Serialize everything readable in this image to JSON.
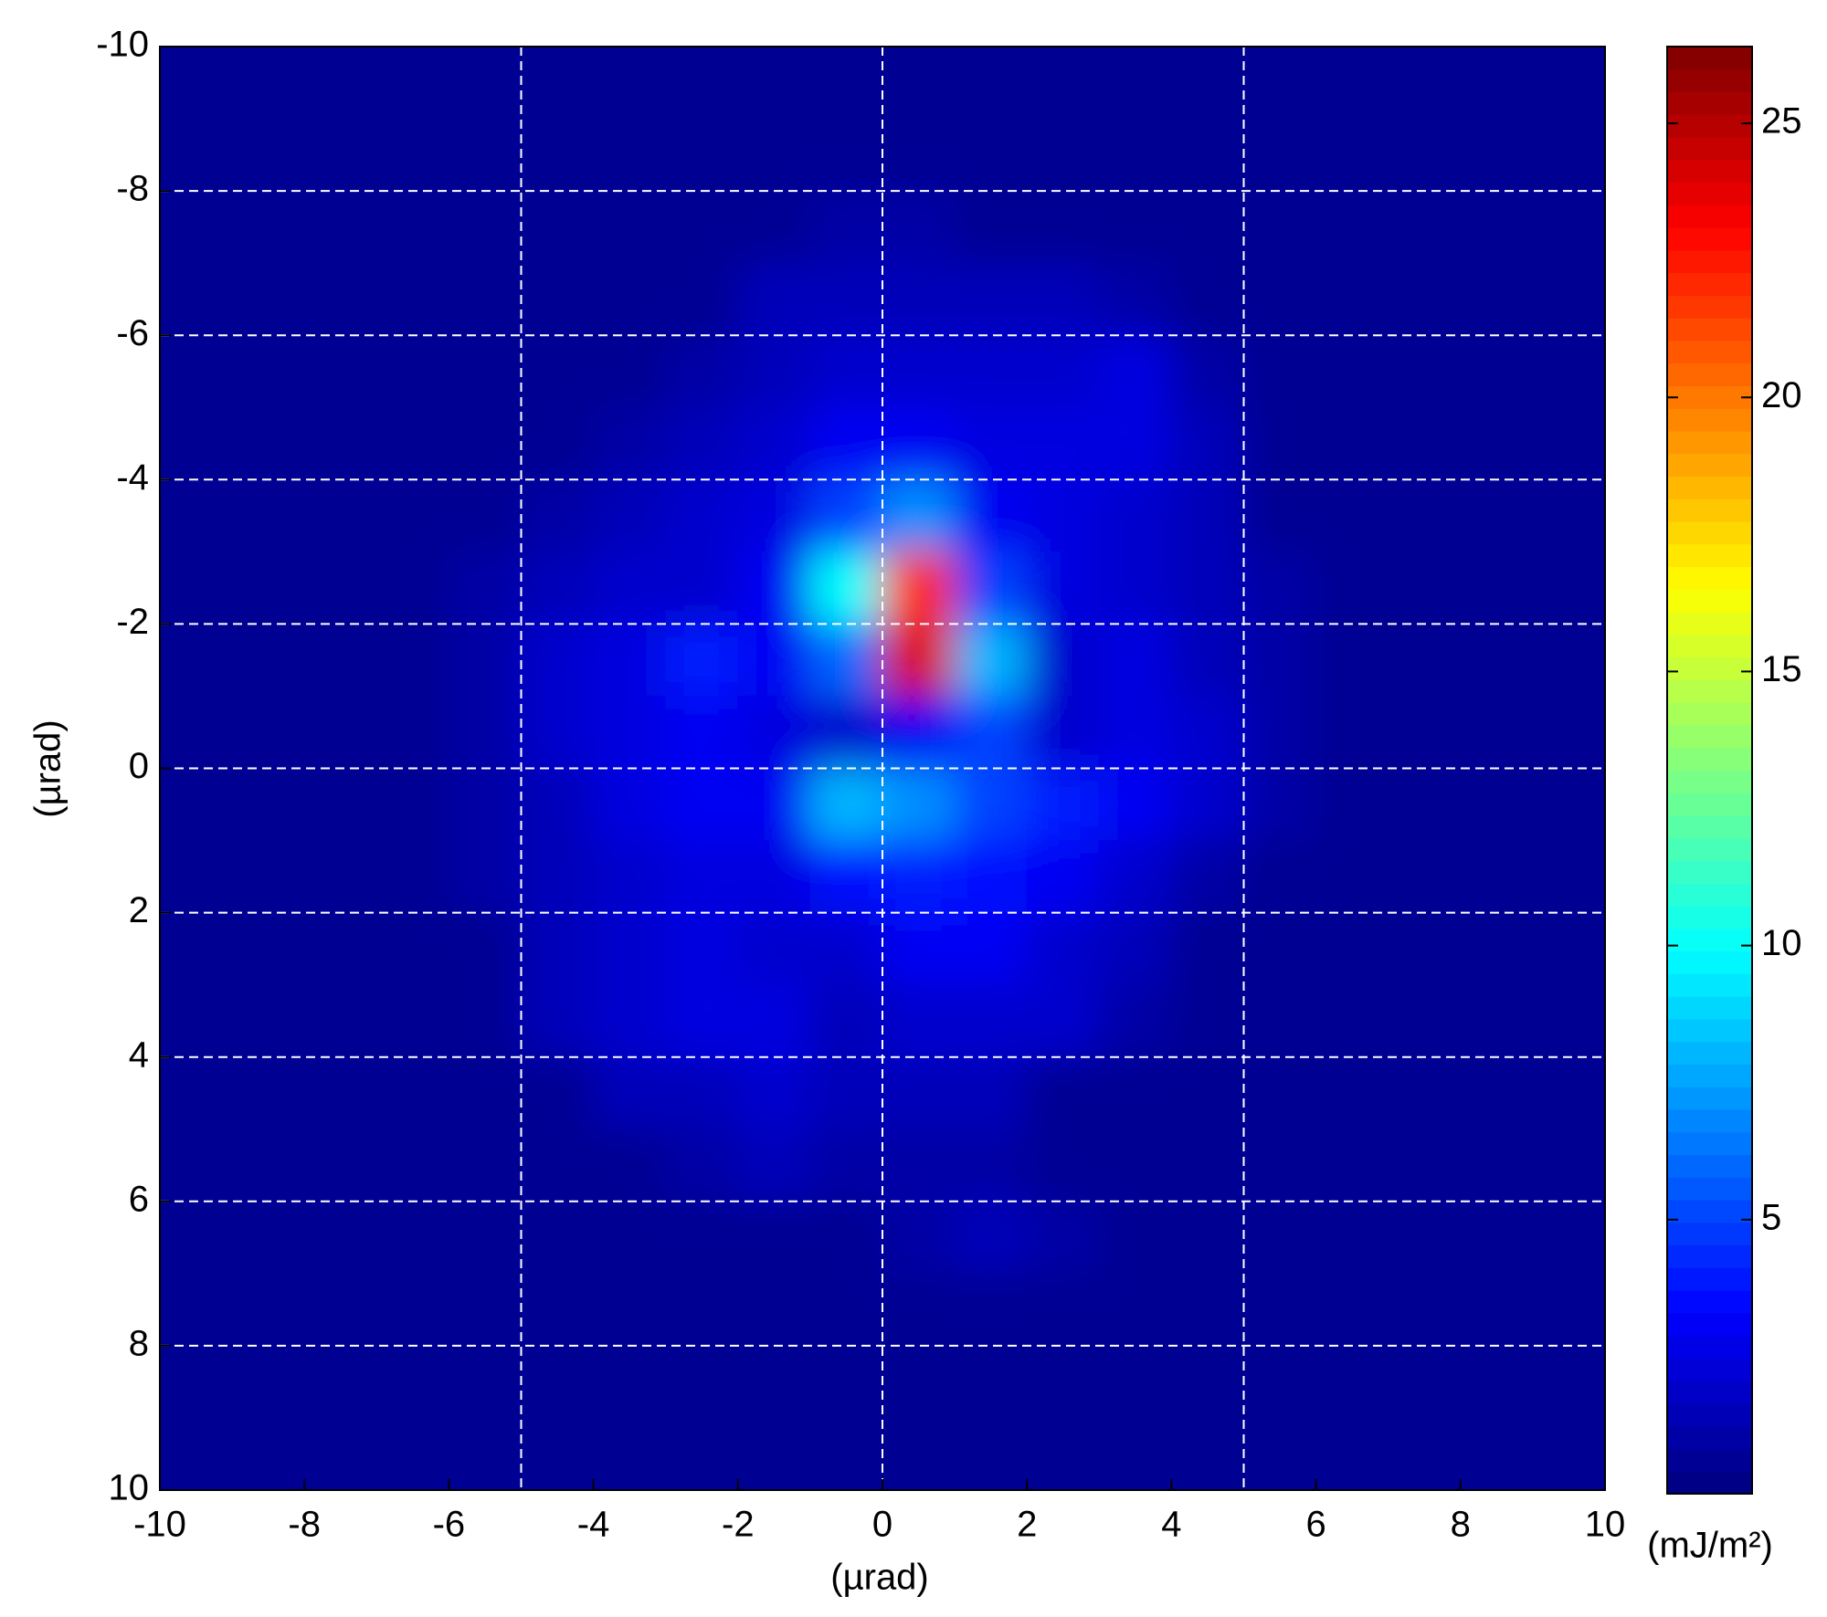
{
  "chart_data": {
    "type": "heatmap",
    "colormap": "jet",
    "x_label": "(µrad)",
    "y_label": "(µrad)",
    "colorbar_label": "(mJ/m²)",
    "xlim": [
      -10,
      10
    ],
    "ylim": [
      -10,
      10
    ],
    "y_reversed": true,
    "xticks": [
      -10,
      -8,
      -6,
      -4,
      -2,
      0,
      2,
      4,
      6,
      8,
      10
    ],
    "yticks": [
      -10,
      -8,
      -6,
      -4,
      -2,
      0,
      2,
      4,
      6,
      8,
      10
    ],
    "xgrid": [
      -5,
      0,
      5
    ],
    "ygrid": [
      -8,
      -6,
      -4,
      -2,
      0,
      2,
      4,
      6,
      8
    ],
    "zlim": [
      0,
      26.4
    ],
    "zticks": [
      5,
      10,
      15,
      20,
      25
    ],
    "x": [
      -9.5,
      -8.5,
      -7.5,
      -6.5,
      -5.5,
      -4.5,
      -3.5,
      -2.5,
      -1.5,
      -0.5,
      0.5,
      1.5,
      2.5,
      3.5,
      4.5,
      5.5,
      6.5,
      7.5,
      8.5,
      9.5
    ],
    "y": [
      -9.5,
      -8.5,
      -7.5,
      -6.5,
      -5.5,
      -4.5,
      -3.5,
      -2.5,
      -1.5,
      -0.5,
      0.5,
      1.5,
      2.5,
      3.5,
      4.5,
      5.5,
      6.5,
      7.5,
      8.5,
      9.5
    ],
    "z": [
      [
        0.5,
        0.5,
        0.5,
        0.5,
        0.5,
        0.5,
        0.5,
        0.5,
        0.5,
        0.5,
        0.5,
        0.5,
        0.5,
        0.5,
        0.5,
        0.5,
        0.5,
        0.5,
        0.5,
        0.5
      ],
      [
        0.5,
        0.5,
        0.5,
        0.5,
        0.5,
        0.5,
        0.5,
        0.5,
        0.5,
        0.5,
        0.5,
        0.5,
        0.5,
        0.5,
        0.5,
        0.5,
        0.5,
        0.5,
        0.5,
        0.5
      ],
      [
        0.5,
        0.5,
        0.5,
        0.5,
        0.5,
        0.5,
        0.5,
        0.5,
        0.5,
        1,
        1,
        0.5,
        0.5,
        0.5,
        0.5,
        0.5,
        0.5,
        0.5,
        0.5,
        0.5
      ],
      [
        0.5,
        0.5,
        0.5,
        0.5,
        0.5,
        0.5,
        0.5,
        0.5,
        1.5,
        1.5,
        1.5,
        1.5,
        1.5,
        1,
        0.5,
        0.5,
        0.5,
        0.5,
        0.5,
        0.5
      ],
      [
        0.5,
        0.5,
        0.5,
        0.5,
        0.5,
        0.5,
        0.5,
        1,
        1.5,
        2,
        2,
        2,
        2,
        2.5,
        1,
        0.5,
        0.5,
        0.5,
        0.5,
        0.5
      ],
      [
        0.5,
        0.5,
        0.5,
        0.5,
        0.5,
        0.5,
        1,
        1.5,
        2,
        3,
        3,
        2.5,
        2.5,
        2.5,
        1.5,
        0.5,
        0.5,
        0.5,
        0.5,
        0.5
      ],
      [
        0.5,
        0.5,
        0.5,
        0.5,
        0.5,
        1,
        1.5,
        2,
        2.5,
        5,
        7,
        3,
        2.5,
        2,
        1.5,
        0.5,
        0.5,
        0.5,
        0.5,
        0.5
      ],
      [
        0.5,
        0.5,
        0.5,
        0.5,
        1,
        1.5,
        2,
        2,
        3,
        10,
        22,
        5,
        2.5,
        2,
        1.5,
        1,
        0.5,
        0.5,
        0.5,
        0.5
      ],
      [
        0.5,
        0.5,
        0.5,
        0.5,
        1,
        2,
        2.5,
        4,
        3,
        6,
        24,
        8,
        2,
        2.5,
        1.5,
        1,
        0.5,
        0.5,
        0.5,
        0.5
      ],
      [
        0.5,
        0.5,
        0.5,
        0.5,
        1,
        2,
        2.5,
        3,
        2.5,
        2,
        3,
        5,
        2,
        2.5,
        2,
        1,
        0.5,
        0.5,
        0.5,
        0.5
      ],
      [
        0.5,
        0.5,
        0.5,
        0.5,
        1,
        1.5,
        2.5,
        3,
        3,
        8,
        7,
        5,
        4,
        3,
        2,
        1,
        0.5,
        0.5,
        0.5,
        0.5
      ],
      [
        0.5,
        0.5,
        0.5,
        0.5,
        1,
        1.5,
        2,
        2.5,
        2.5,
        3.5,
        4,
        3.5,
        3,
        2,
        1,
        0.5,
        0.5,
        0.5,
        0.5,
        0.5
      ],
      [
        0.5,
        0.5,
        0.5,
        0.5,
        0.5,
        1.5,
        2,
        2.5,
        2,
        2,
        3,
        3,
        2,
        1.5,
        0.5,
        0.5,
        0.5,
        0.5,
        0.5,
        0.5
      ],
      [
        0.5,
        0.5,
        0.5,
        0.5,
        0.5,
        1.5,
        2,
        2.5,
        2.5,
        1.5,
        2,
        2,
        2,
        1,
        0.5,
        0.5,
        0.5,
        0.5,
        0.5,
        0.5
      ],
      [
        0.5,
        0.5,
        0.5,
        0.5,
        0.5,
        0.5,
        1.5,
        1.5,
        2,
        1.5,
        1.5,
        1.5,
        0.5,
        0.5,
        0.5,
        0.5,
        0.5,
        0.5,
        0.5,
        0.5
      ],
      [
        0.5,
        0.5,
        0.5,
        0.5,
        0.5,
        0.5,
        0.5,
        1,
        1.5,
        1,
        1,
        1,
        0.5,
        0.5,
        0.5,
        0.5,
        0.5,
        0.5,
        0.5,
        0.5
      ],
      [
        0.5,
        0.5,
        0.5,
        0.5,
        0.5,
        0.5,
        0.5,
        0.5,
        0.5,
        0.5,
        1,
        1.5,
        1,
        0.5,
        0.5,
        0.5,
        0.5,
        0.5,
        0.5,
        0.5
      ],
      [
        0.5,
        0.5,
        0.5,
        0.5,
        0.5,
        0.5,
        0.5,
        0.5,
        0.5,
        0.5,
        0.5,
        0.5,
        0.5,
        0.5,
        0.5,
        0.5,
        0.5,
        0.5,
        0.5,
        0.5
      ],
      [
        0.5,
        0.5,
        0.5,
        0.5,
        0.5,
        0.5,
        0.5,
        0.5,
        0.5,
        0.5,
        0.5,
        0.5,
        0.5,
        0.5,
        0.5,
        0.5,
        0.5,
        0.5,
        0.5,
        0.5
      ],
      [
        0.5,
        0.5,
        0.5,
        0.5,
        0.5,
        0.5,
        0.5,
        0.5,
        0.5,
        0.5,
        0.5,
        0.5,
        0.5,
        0.5,
        0.5,
        0.5,
        0.5,
        0.5,
        0.5,
        0.5
      ]
    ]
  }
}
